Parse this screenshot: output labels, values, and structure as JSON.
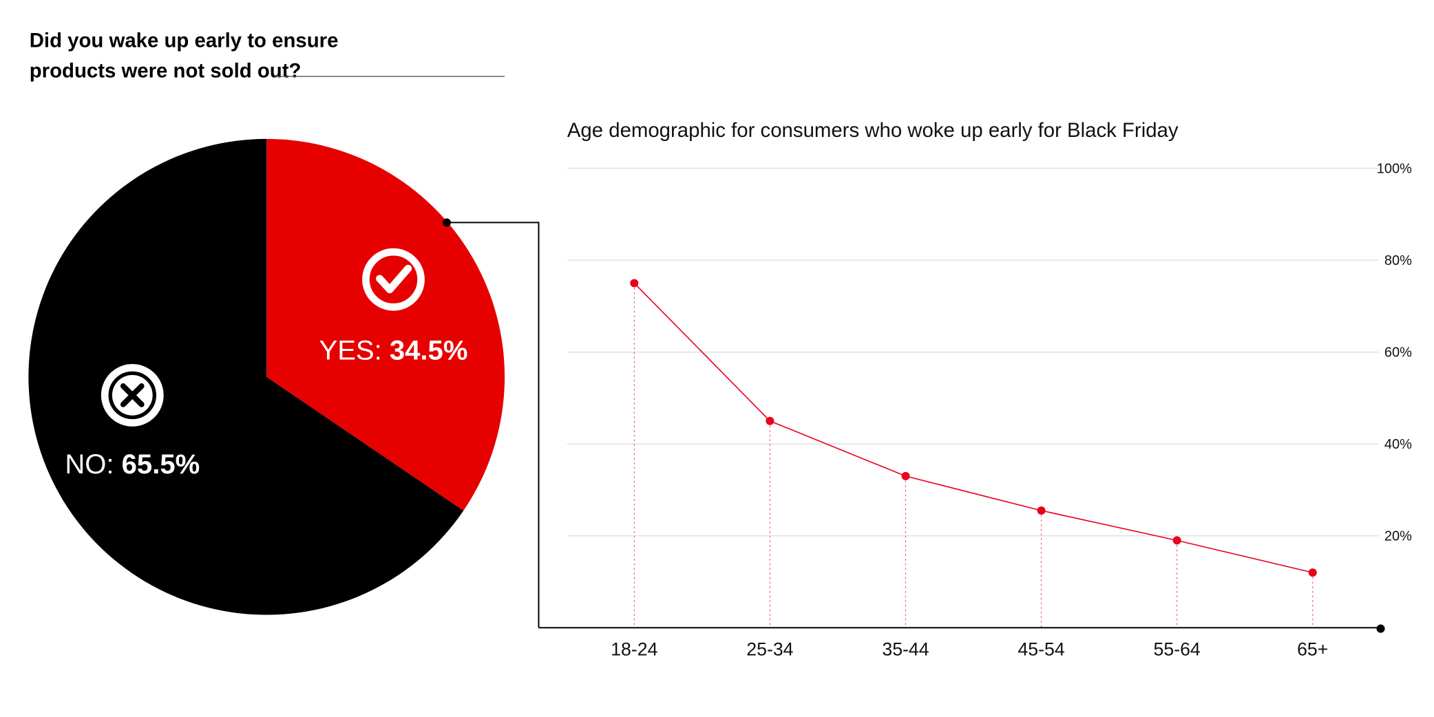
{
  "question": {
    "line1": "Did you wake up early to ensure",
    "line2": "products were not sold out?"
  },
  "colors": {
    "yes": "#e60000",
    "no": "#000000",
    "line": "#e8001c",
    "grid": "#dddddd"
  },
  "chart_data": [
    {
      "type": "pie",
      "title": "Did you wake up early to ensure products were not sold out?",
      "slices": [
        {
          "name": "YES",
          "value": 34.5,
          "label_prefix": "YES: ",
          "label_value": "34.5%",
          "icon": "check-circle-icon"
        },
        {
          "name": "NO",
          "value": 65.5,
          "label_prefix": "NO: ",
          "label_value": "65.5%",
          "icon": "x-circle-icon"
        }
      ]
    },
    {
      "type": "line",
      "title": "Age demographic for consumers who woke up early for Black Friday",
      "categories": [
        "18-24",
        "25-34",
        "35-44",
        "45-54",
        "55-64",
        "65+"
      ],
      "values": [
        75,
        45,
        33,
        25.5,
        19,
        12
      ],
      "ylim": [
        0,
        100
      ],
      "yticks": [
        20,
        40,
        60,
        80,
        100
      ],
      "ytick_labels": [
        "20%",
        "40%",
        "60%",
        "80%",
        "100%"
      ],
      "grid": true,
      "ylabel_position": "right"
    }
  ]
}
